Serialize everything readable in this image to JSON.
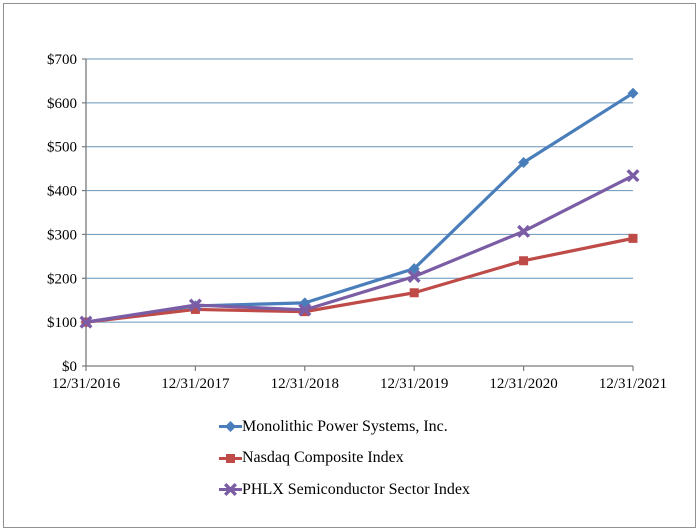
{
  "figure": {
    "background": "#FFFFFF",
    "border_color": "#919191"
  },
  "colors": {
    "axis": "#7A7A7A",
    "gridline": "#6694BA",
    "text": "#000000"
  },
  "chart_data": {
    "type": "line",
    "categories": [
      "12/31/2016",
      "12/31/2017",
      "12/31/2018",
      "12/31/2019",
      "12/31/2020",
      "12/31/2021"
    ],
    "series": [
      {
        "name": "Monolithic Power Systems, Inc.",
        "marker": "diamond",
        "color": "#4A7EBB",
        "values": [
          100,
          137,
          144,
          222,
          464,
          622
        ]
      },
      {
        "name": "Nasdaq Composite Index",
        "marker": "square",
        "color": "#BE4B48",
        "values": [
          100,
          129,
          124,
          167,
          240,
          291
        ]
      },
      {
        "name": "PHLX Semiconductor Sector Index",
        "marker": "x",
        "color": "#7B5DA5",
        "values": [
          100,
          139,
          128,
          204,
          307,
          434
        ]
      }
    ],
    "ylim": [
      0,
      700
    ],
    "y_ticks": [
      {
        "label": "$0",
        "value": 0
      },
      {
        "label": "$100",
        "value": 100
      },
      {
        "label": "$200",
        "value": 200
      },
      {
        "label": "$300",
        "value": 300
      },
      {
        "label": "$400",
        "value": 400
      },
      {
        "label": "$500",
        "value": 500
      },
      {
        "label": "$600",
        "value": 600
      },
      {
        "label": "$700",
        "value": 700
      }
    ],
    "grid": "horizontal",
    "legend_position": "bottom"
  }
}
